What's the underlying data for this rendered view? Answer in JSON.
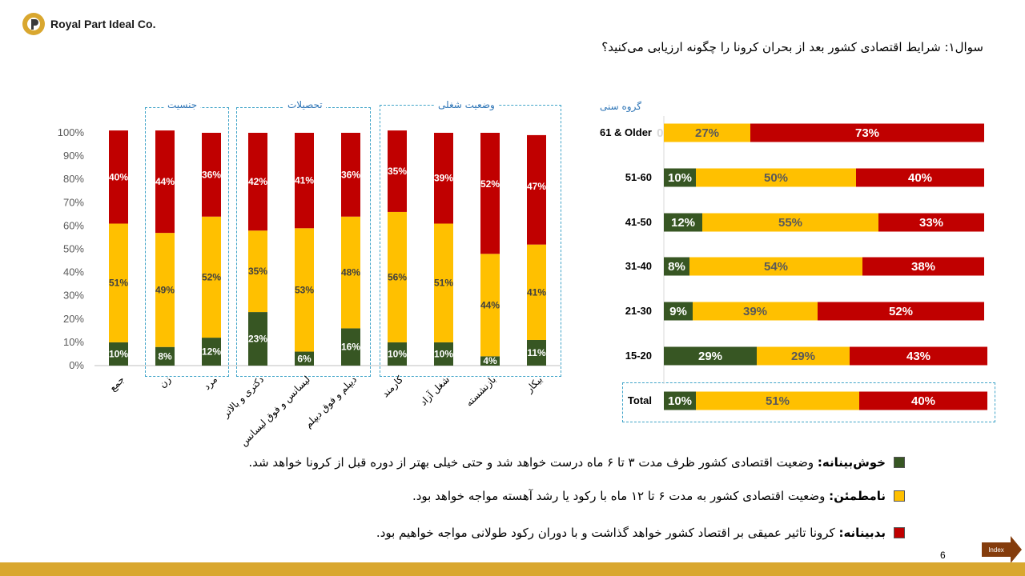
{
  "header": {
    "company": "Royal Part Ideal Co.",
    "question": "سوال۱: شرایط اقتصادی کشور بعد از بحران کرونا را چگونه ارزیابی می‌کنید؟"
  },
  "colors": {
    "optimistic": "#375623",
    "uncertain": "#ffc000",
    "pessimistic": "#c00000"
  },
  "groups": {
    "gender": "جنسیت",
    "education": "تحصیلات",
    "job": "وضعیت شغلی",
    "age": "گروه سنی"
  },
  "chart_data": [
    {
      "type": "bar",
      "stacked": true,
      "orientation": "vertical",
      "categories": [
        "جمع",
        "زن",
        "مرد",
        "دکتری و بالاتر",
        "لیسانس و فوق لیسانس",
        "دیپلم و فوق دیپلم",
        "کارمند",
        "شغل آزاد",
        "بازنشسته",
        "بیکار"
      ],
      "series": [
        {
          "name": "خوش‌بینانه",
          "values": [
            10,
            8,
            12,
            23,
            6,
            16,
            10,
            10,
            4,
            11
          ],
          "color": "#375623"
        },
        {
          "name": "نامطمئن",
          "values": [
            51,
            49,
            52,
            35,
            53,
            48,
            56,
            51,
            44,
            41
          ],
          "color": "#ffc000"
        },
        {
          "name": "بدبینانه",
          "values": [
            40,
            44,
            36,
            42,
            41,
            36,
            35,
            39,
            52,
            47
          ],
          "color": "#c00000"
        }
      ],
      "yticks": [
        "0%",
        "10%",
        "20%",
        "30%",
        "40%",
        "50%",
        "60%",
        "70%",
        "80%",
        "90%",
        "100%"
      ],
      "ylim": [
        0,
        100
      ]
    },
    {
      "type": "bar",
      "stacked": true,
      "orientation": "horizontal",
      "categories": [
        "61 & Older",
        "51-60",
        "41-50",
        "31-40",
        "21-30",
        "15-20",
        "Total"
      ],
      "series": [
        {
          "name": "خوش‌بینانه",
          "values": [
            0,
            10,
            12,
            8,
            9,
            29,
            10
          ],
          "color": "#375623"
        },
        {
          "name": "نامطمئن",
          "values": [
            27,
            50,
            55,
            54,
            39,
            29,
            51
          ],
          "color": "#ffc000"
        },
        {
          "name": "بدبینانه",
          "values": [
            73,
            40,
            33,
            38,
            52,
            43,
            40
          ],
          "color": "#c00000"
        }
      ],
      "xlim": [
        0,
        100
      ]
    }
  ],
  "legend": [
    {
      "label": "خوش‌بینانه:",
      "text": "وضعیت اقتصادی کشور ظرف مدت ۳ تا ۶ ماه درست خواهد شد و حتی خیلی بهتر از دوره قبل از کرونا خواهد شد.",
      "color": "#375623"
    },
    {
      "label": "نامطمئن:",
      "text": "وضعیت اقتصادی کشور به مدت ۶ تا ۱۲ ماه با رکود یا رشد آهسته مواجه خواهد بود.",
      "color": "#ffc000"
    },
    {
      "label": "بدبینانه:",
      "text": "کرونا تاثیر عمیقی بر اقتصاد کشور خواهد گذاشت و با دوران رکود طولانی مواجه خواهیم بود.",
      "color": "#c00000"
    }
  ],
  "footer": {
    "page": "6",
    "index_label": "Index"
  }
}
